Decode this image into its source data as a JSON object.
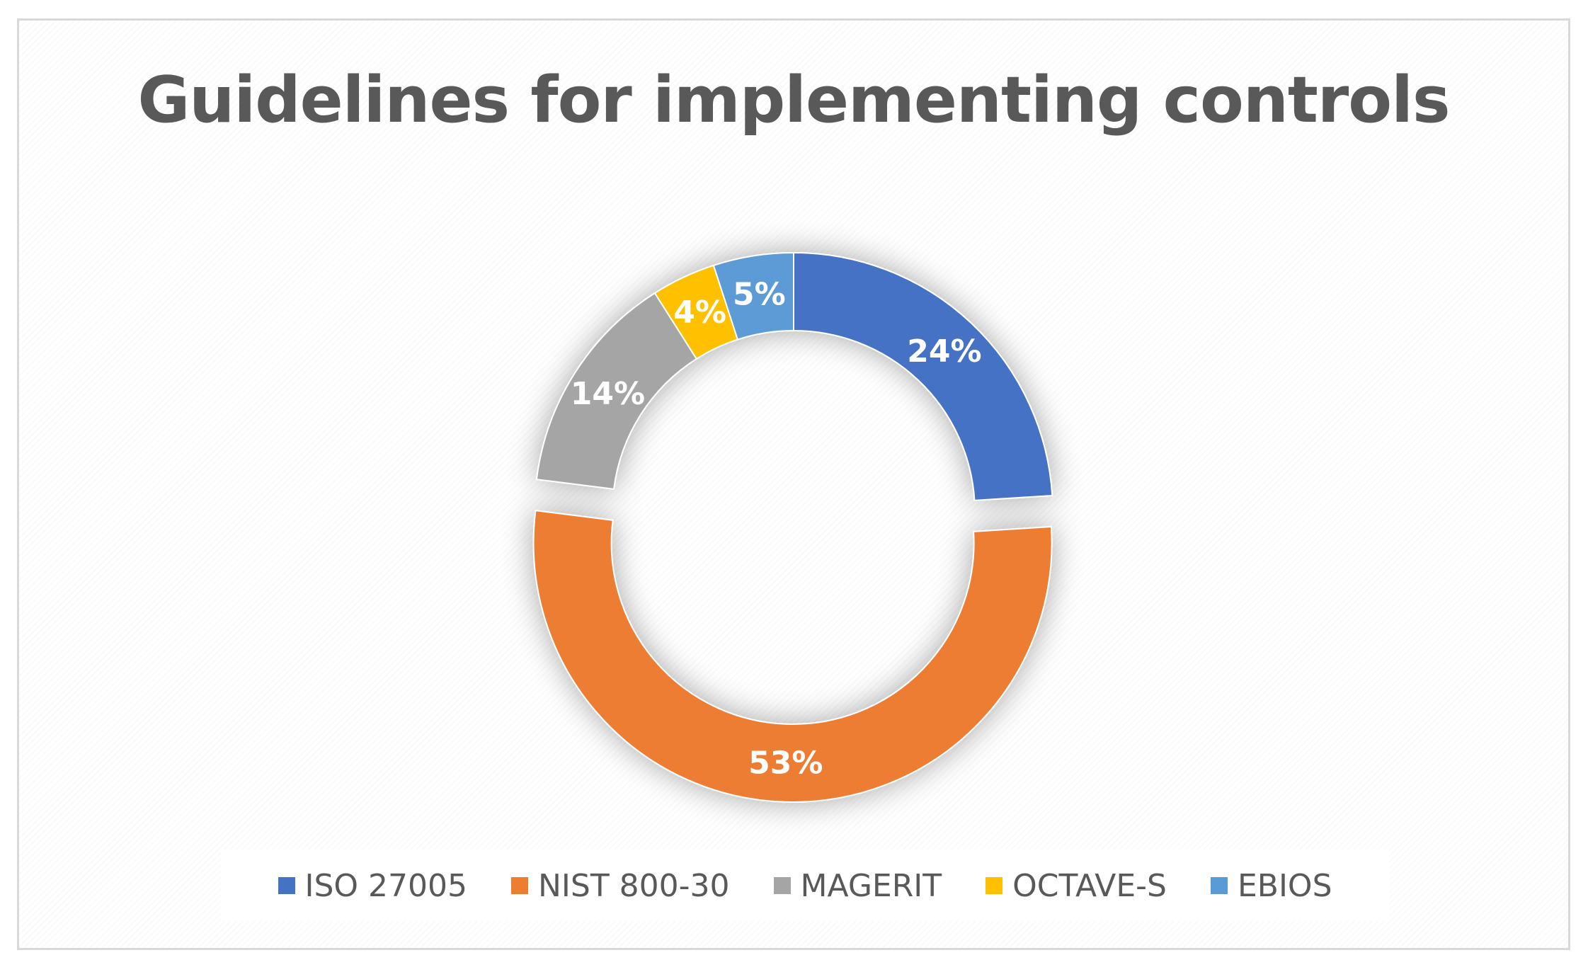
{
  "chart_data": {
    "type": "pie",
    "title": "Guidelines for implementing controls",
    "categories": [
      "ISO 27005",
      "NIST 800-30",
      "MAGERIT",
      "OCTAVE-S",
      "EBIOS"
    ],
    "values": [
      24,
      53,
      14,
      4,
      5
    ],
    "data_labels": [
      "24%",
      "53%",
      "14%",
      "4%",
      "5%"
    ],
    "colors": [
      "#4472c4",
      "#ed7d31",
      "#a5a5a5",
      "#ffc000",
      "#5b9bd5"
    ],
    "legend_position": "bottom",
    "style": "doughnut, exploded NIST 800-30 slice"
  }
}
